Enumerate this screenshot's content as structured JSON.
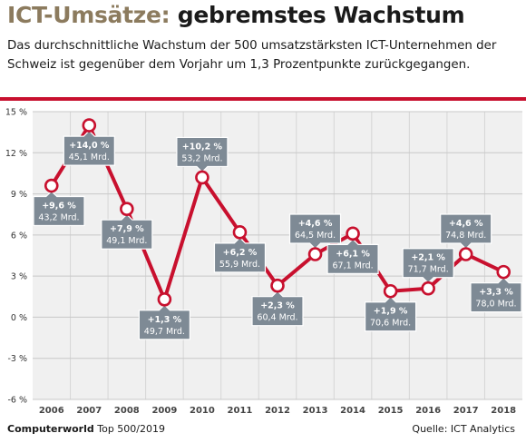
{
  "header": {
    "title_accent": "ICT-Umsätze:",
    "title_main": "gebremstes Wachstum",
    "subtitle": "Das durchschnittliche Wachstum der 500 umsatzstärksten ICT-Unternehmen der Schweiz ist gegenüber dem Vorjahr um 1,3 Prozentpunkte zurückgegangen."
  },
  "footer": {
    "brand": "Computerworld",
    "publication": "Top 500/2019",
    "source": "Quelle: ICT Analytics"
  },
  "colors": {
    "line": "#c8102e",
    "callout": "#7e8a95",
    "plot_background": "#f0f0f0",
    "grid": "#c8c8c8"
  },
  "chart_data": {
    "type": "line",
    "x": [
      "2006",
      "2007",
      "2008",
      "2009",
      "2010",
      "2011",
      "2012",
      "2013",
      "2014",
      "2015",
      "2016",
      "2017",
      "2018"
    ],
    "series": [
      {
        "values": [
          9.6,
          14.0,
          7.9,
          1.3,
          10.2,
          6.2,
          2.3,
          4.6,
          6.1,
          1.9,
          2.1,
          4.6,
          3.3
        ]
      }
    ],
    "data_labels": [
      {
        "growth": "+9,6 %",
        "revenue": "43,2 Mrd.",
        "placement": "below"
      },
      {
        "growth": "+14,0 %",
        "revenue": "45,1 Mrd.",
        "placement": "below"
      },
      {
        "growth": "+7,9 %",
        "revenue": "49,1 Mrd.",
        "placement": "below"
      },
      {
        "growth": "+1,3 %",
        "revenue": "49,7 Mrd.",
        "placement": "below"
      },
      {
        "growth": "+10,2 %",
        "revenue": "53,2 Mrd.",
        "placement": "above"
      },
      {
        "growth": "+6,2 %",
        "revenue": "55,9 Mrd.",
        "placement": "below"
      },
      {
        "growth": "+2,3 %",
        "revenue": "60,4 Mrd.",
        "placement": "below"
      },
      {
        "growth": "+4,6 %",
        "revenue": "64,5 Mrd.",
        "placement": "above"
      },
      {
        "growth": "+6,1 %",
        "revenue": "67,1 Mrd.",
        "placement": "below"
      },
      {
        "growth": "+1,9 %",
        "revenue": "70,6 Mrd.",
        "placement": "below"
      },
      {
        "growth": "+2,1 %",
        "revenue": "71,7 Mrd.",
        "placement": "above"
      },
      {
        "growth": "+4,6 %",
        "revenue": "74,8 Mrd.",
        "placement": "above"
      },
      {
        "growth": "+3,3 %",
        "revenue": "78,0 Mrd.",
        "placement": "below"
      }
    ],
    "y_ticks": [
      "15 %",
      "12 %",
      "9 %",
      "6 %",
      "3 %",
      "0 %",
      "-3 %",
      "-6 %"
    ],
    "ylim": [
      -6,
      15
    ],
    "grid": true,
    "legend": "none"
  }
}
